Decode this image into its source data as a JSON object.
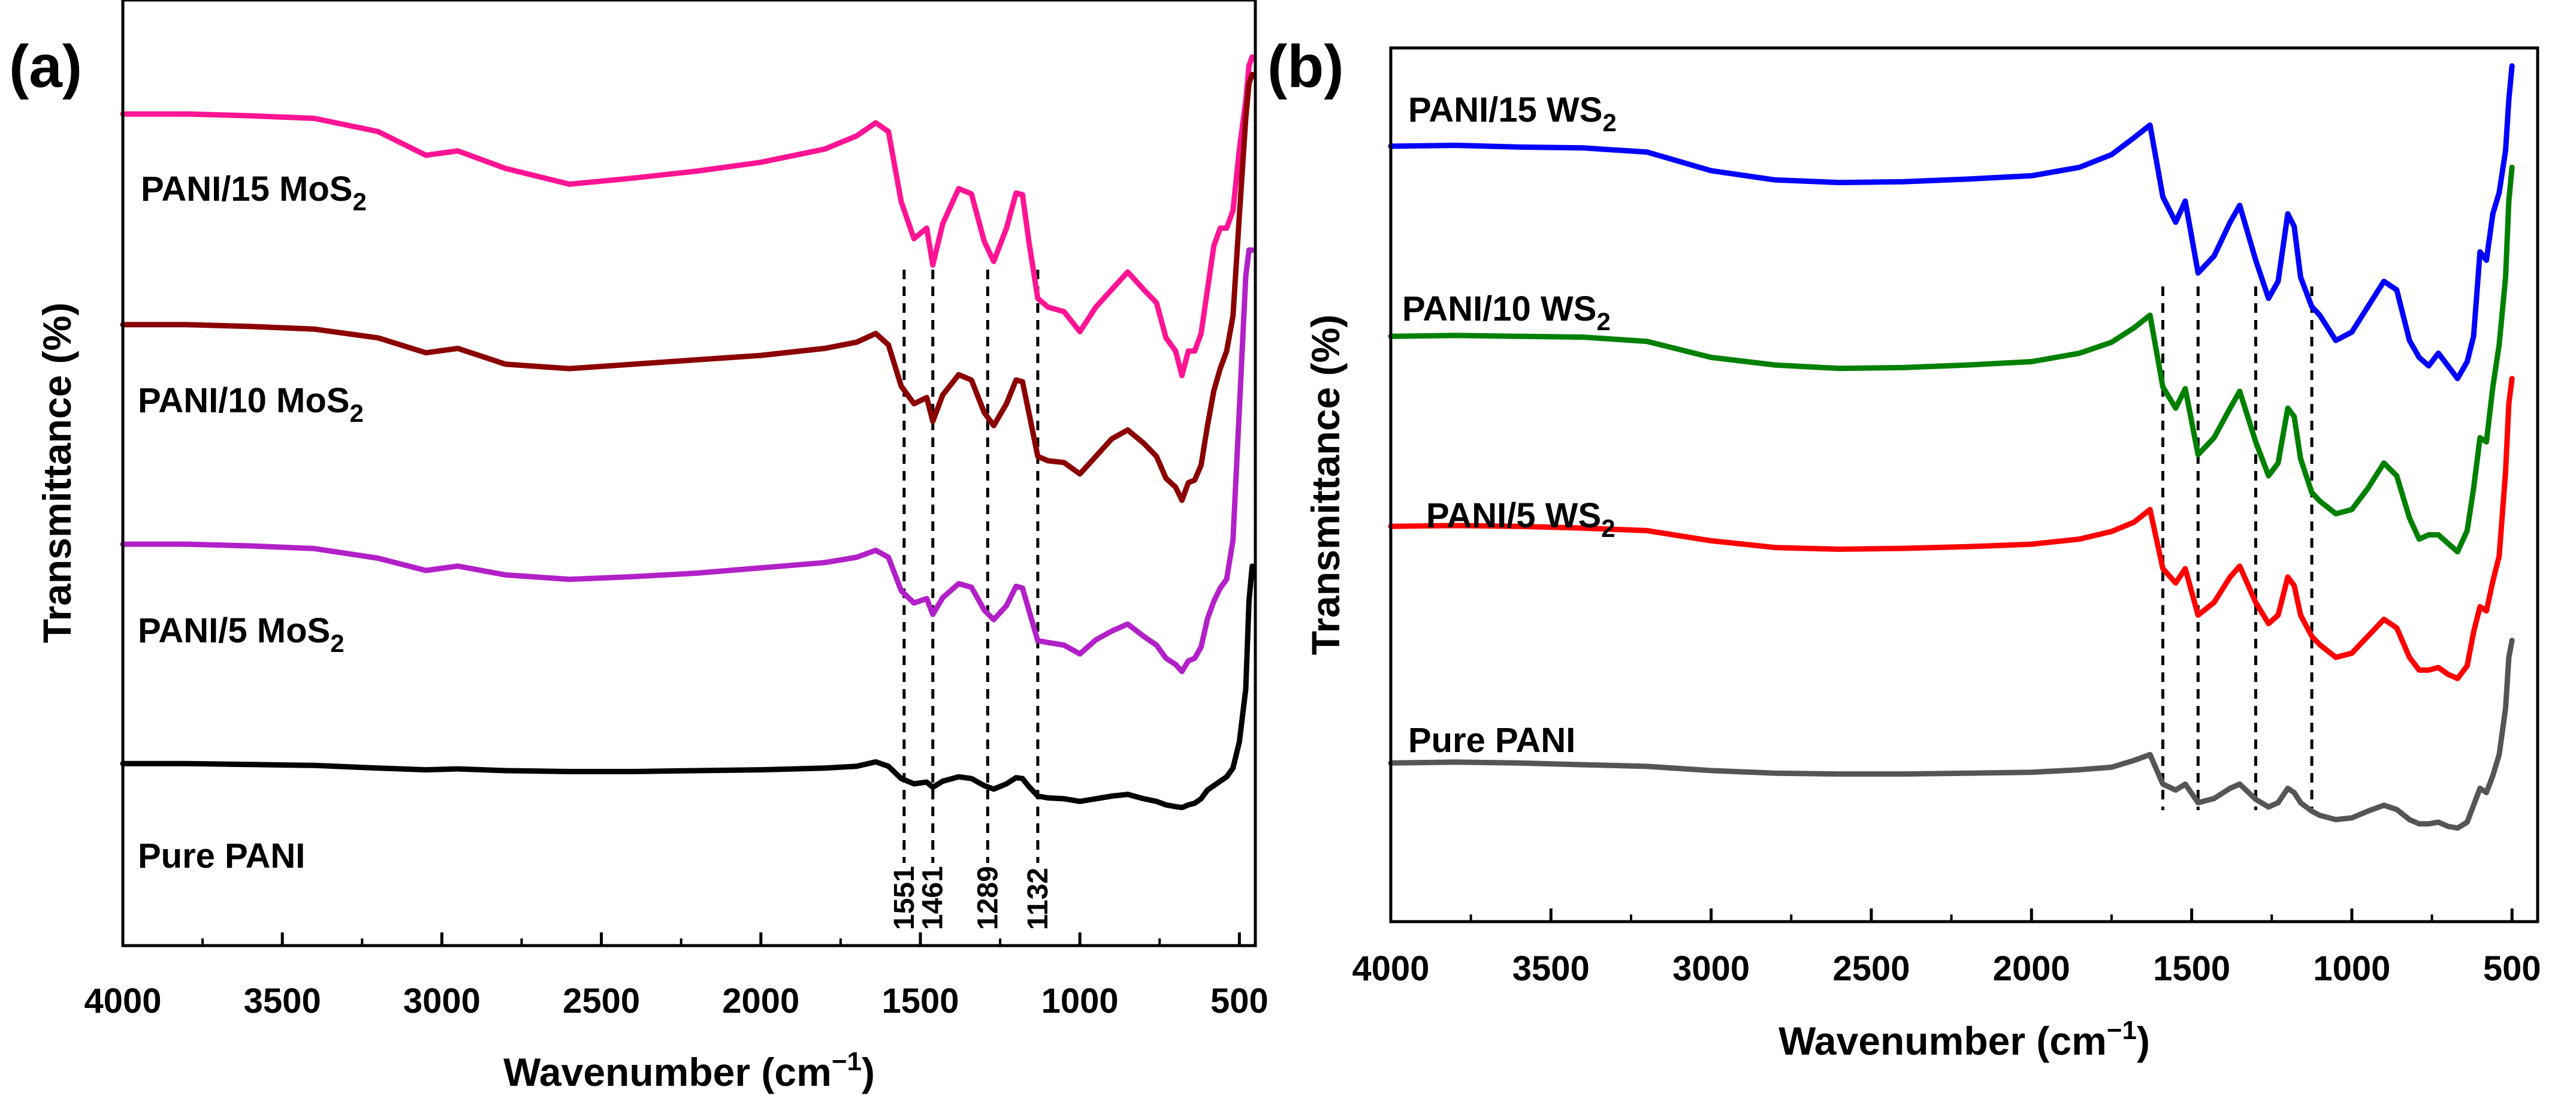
{
  "chart_data": [
    {
      "type": "line",
      "panel_label": "(a)",
      "xlabel": "Wavenumber (cm⁻¹)",
      "xlabel_base": "Wavenumber (cm",
      "xlabel_sup": "−1",
      "xlabel_end": ")",
      "ylabel": "Transmittance (%)",
      "xlim": [
        4000,
        450
      ],
      "ylim": [
        0,
        100
      ],
      "y_ticks_shown": false,
      "x_ticks": [
        4000,
        3500,
        3000,
        2500,
        2000,
        1500,
        1000,
        500
      ],
      "x_tick_labels": [
        "4000",
        "3500",
        "3000",
        "2500",
        "2000",
        "1500",
        "1000",
        "500"
      ],
      "peak_markers": [
        1551,
        1461,
        1289,
        1132
      ],
      "peak_labels": [
        "1551",
        "1461",
        "1289",
        "1132"
      ],
      "series": [
        {
          "name": "PANI/15 MoS2",
          "label_base": "PANI/15 MoS",
          "label_sub": "2",
          "color": "#ff1493",
          "x": [
            4000,
            3800,
            3600,
            3400,
            3200,
            3050,
            2950,
            2800,
            2600,
            2400,
            2200,
            2000,
            1800,
            1700,
            1640,
            1600,
            1560,
            1520,
            1480,
            1461,
            1430,
            1380,
            1340,
            1300,
            1270,
            1230,
            1200,
            1180,
            1160,
            1132,
            1100,
            1050,
            1000,
            950,
            900,
            850,
            800,
            760,
            730,
            700,
            680,
            660,
            640,
            620,
            600,
            580,
            560,
            540,
            520,
            500,
            480,
            470,
            460
          ],
          "y": [
            93.5,
            93.5,
            93.3,
            93.0,
            91.5,
            88.8,
            89.3,
            87.3,
            85.5,
            86.2,
            87.0,
            88.0,
            89.5,
            91.0,
            92.5,
            91.5,
            83.5,
            79.3,
            80.5,
            76.3,
            81.0,
            85.0,
            84.4,
            79.0,
            76.7,
            80.5,
            84.5,
            84.3,
            79.0,
            72.5,
            71.5,
            71.0,
            68.7,
            71.5,
            73.5,
            75.5,
            73.5,
            72.0,
            68.0,
            66.5,
            63.7,
            66.5,
            66.5,
            68.5,
            73.5,
            78.5,
            80.5,
            80.5,
            82.5,
            89.5,
            95.0,
            99.0,
            100
          ]
        },
        {
          "name": "PANI/10 MoS2",
          "label_base": "PANI/10 MoS",
          "label_sub": "2",
          "color": "#8b0000",
          "x": [
            4000,
            3800,
            3600,
            3400,
            3200,
            3050,
            2950,
            2800,
            2600,
            2400,
            2200,
            2000,
            1800,
            1700,
            1640,
            1600,
            1560,
            1520,
            1480,
            1461,
            1430,
            1380,
            1340,
            1300,
            1270,
            1230,
            1200,
            1180,
            1160,
            1132,
            1100,
            1050,
            1000,
            950,
            900,
            850,
            800,
            760,
            730,
            700,
            680,
            660,
            640,
            620,
            600,
            580,
            560,
            540,
            520,
            500,
            480,
            470,
            460
          ],
          "y": [
            69.5,
            69.5,
            69.3,
            69.0,
            68.0,
            66.3,
            66.8,
            65.0,
            64.5,
            65.0,
            65.5,
            66.0,
            66.8,
            67.5,
            68.5,
            67.2,
            62.5,
            60.5,
            61.2,
            58.5,
            61.5,
            63.8,
            63.2,
            59.5,
            58.0,
            60.5,
            63.2,
            63.0,
            59.5,
            54.5,
            54.0,
            53.8,
            52.5,
            54.5,
            56.5,
            57.5,
            56.0,
            54.5,
            52.0,
            51.0,
            49.5,
            51.5,
            51.8,
            53.5,
            58.0,
            62.0,
            64.5,
            66.5,
            70.5,
            82.0,
            93.0,
            97.0,
            98.0
          ]
        },
        {
          "name": "PANI/5 MoS2",
          "label_base": "PANI/5 MoS",
          "label_sub": "2",
          "color": "#b220c8",
          "x": [
            4000,
            3800,
            3600,
            3400,
            3200,
            3050,
            2950,
            2800,
            2600,
            2400,
            2200,
            2000,
            1800,
            1700,
            1640,
            1600,
            1560,
            1520,
            1480,
            1461,
            1430,
            1380,
            1340,
            1300,
            1270,
            1230,
            1200,
            1180,
            1160,
            1132,
            1100,
            1050,
            1000,
            950,
            900,
            850,
            800,
            760,
            730,
            700,
            680,
            660,
            640,
            620,
            600,
            580,
            560,
            540,
            520,
            500,
            480,
            470,
            460
          ],
          "y": [
            44.5,
            44.5,
            44.3,
            44.0,
            42.9,
            41.5,
            42.0,
            41.0,
            40.5,
            40.8,
            41.2,
            41.8,
            42.4,
            43.0,
            43.8,
            43.0,
            39.2,
            37.8,
            38.3,
            36.5,
            38.4,
            40.0,
            39.6,
            37.0,
            35.9,
            37.5,
            39.7,
            39.5,
            37.0,
            33.5,
            33.3,
            33.0,
            32.0,
            33.6,
            34.6,
            35.4,
            34.0,
            33.0,
            31.5,
            30.8,
            30.0,
            31.2,
            31.5,
            32.8,
            36.0,
            38.0,
            39.5,
            40.5,
            45.0,
            60.0,
            75.0,
            78.0,
            78.0
          ]
        },
        {
          "name": "Pure PANI",
          "label_base": "Pure PANI",
          "label_sub": "",
          "color": "#000000",
          "x": [
            4000,
            3800,
            3600,
            3400,
            3200,
            3050,
            2950,
            2800,
            2600,
            2400,
            2200,
            2000,
            1800,
            1700,
            1640,
            1600,
            1560,
            1520,
            1480,
            1461,
            1430,
            1380,
            1340,
            1300,
            1270,
            1230,
            1200,
            1180,
            1160,
            1132,
            1100,
            1050,
            1000,
            950,
            900,
            850,
            800,
            760,
            730,
            700,
            680,
            660,
            640,
            620,
            600,
            580,
            560,
            540,
            520,
            500,
            480,
            470,
            460
          ],
          "y": [
            19.5,
            19.5,
            19.4,
            19.3,
            19.0,
            18.8,
            18.9,
            18.7,
            18.6,
            18.6,
            18.7,
            18.8,
            19.0,
            19.2,
            19.7,
            19.2,
            17.8,
            17.2,
            17.4,
            16.8,
            17.5,
            18.0,
            17.8,
            17.0,
            16.6,
            17.2,
            17.9,
            17.8,
            16.9,
            15.8,
            15.6,
            15.5,
            15.2,
            15.5,
            15.8,
            16.0,
            15.5,
            15.2,
            14.8,
            14.6,
            14.5,
            14.8,
            15.0,
            15.5,
            16.5,
            17.0,
            17.5,
            18.0,
            19.0,
            22.0,
            28.0,
            38.0,
            42.0
          ]
        }
      ]
    },
    {
      "type": "line",
      "panel_label": "(b)",
      "xlabel": "Wavenumber (cm⁻¹)",
      "xlabel_base": "Wavenumber (cm",
      "xlabel_sup": "−1",
      "xlabel_end": ")",
      "ylabel": "Transmittance (%)",
      "xlim": [
        4000,
        420
      ],
      "ylim": [
        0,
        100
      ],
      "y_ticks_shown": false,
      "x_ticks": [
        4000,
        3500,
        3000,
        2500,
        2000,
        1500,
        1000,
        500
      ],
      "x_tick_labels": [
        "4000",
        "3500",
        "3000",
        "2500",
        "2000",
        "1500",
        "1000",
        "500"
      ],
      "peak_markers": [
        1590,
        1480,
        1300,
        1125
      ],
      "series": [
        {
          "name": "PANI/15 WS2",
          "label_base": "PANI/15 WS",
          "label_sub": "2",
          "color": "#0000ff",
          "x": [
            4000,
            3800,
            3600,
            3400,
            3200,
            3000,
            2800,
            2600,
            2400,
            2200,
            2000,
            1850,
            1750,
            1680,
            1630,
            1590,
            1550,
            1520,
            1480,
            1430,
            1380,
            1350,
            1300,
            1260,
            1230,
            1200,
            1180,
            1160,
            1125,
            1100,
            1050,
            1000,
            950,
            900,
            860,
            820,
            790,
            760,
            730,
            700,
            670,
            640,
            620,
            600,
            580,
            560,
            540,
            520,
            510,
            500
          ],
          "y": [
            90.5,
            90.6,
            90.4,
            90.3,
            89.8,
            87.6,
            86.5,
            86.2,
            86.3,
            86.6,
            87.0,
            88.0,
            89.5,
            91.5,
            93.0,
            84.5,
            81.5,
            84.0,
            75.5,
            77.5,
            81.5,
            83.5,
            77.0,
            72.5,
            74.5,
            82.5,
            81.0,
            75.0,
            71.5,
            70.5,
            67.5,
            68.5,
            71.5,
            74.5,
            73.5,
            67.5,
            65.5,
            64.5,
            66.0,
            64.5,
            63.0,
            65.0,
            68.0,
            78.0,
            77.0,
            82.5,
            85.0,
            90.0,
            96.0,
            100.0
          ]
        },
        {
          "name": "PANI/10 WS2",
          "label_base": "PANI/10 WS",
          "label_sub": "2",
          "color": "#008000",
          "x": [
            4000,
            3800,
            3600,
            3400,
            3200,
            3000,
            2800,
            2600,
            2400,
            2200,
            2000,
            1850,
            1750,
            1680,
            1630,
            1590,
            1550,
            1520,
            1480,
            1430,
            1380,
            1350,
            1300,
            1260,
            1230,
            1200,
            1180,
            1160,
            1125,
            1100,
            1050,
            1000,
            950,
            900,
            860,
            820,
            790,
            760,
            730,
            700,
            670,
            640,
            620,
            600,
            580,
            560,
            540,
            520,
            510,
            500
          ],
          "y": [
            68.0,
            68.1,
            68.0,
            67.9,
            67.4,
            65.5,
            64.6,
            64.2,
            64.3,
            64.6,
            65.0,
            66.0,
            67.3,
            69.0,
            70.5,
            62.0,
            59.5,
            61.8,
            54.0,
            56.0,
            59.5,
            61.5,
            55.5,
            51.5,
            53.0,
            59.5,
            58.5,
            53.5,
            49.5,
            48.5,
            47.0,
            47.5,
            50.0,
            53.0,
            51.5,
            46.5,
            44.0,
            44.5,
            44.5,
            43.5,
            42.5,
            45.0,
            50.0,
            56.0,
            55.5,
            62.0,
            67.0,
            75.0,
            84.0,
            88.0
          ]
        },
        {
          "name": "PANI/5 WS2",
          "label_base": "PANI/5 WS",
          "label_sub": "2",
          "color": "#ff0000",
          "x": [
            4000,
            3800,
            3600,
            3400,
            3200,
            3000,
            2800,
            2600,
            2400,
            2200,
            2000,
            1850,
            1750,
            1680,
            1630,
            1590,
            1550,
            1520,
            1480,
            1430,
            1380,
            1350,
            1300,
            1260,
            1230,
            1200,
            1180,
            1160,
            1125,
            1100,
            1050,
            1000,
            950,
            900,
            860,
            820,
            790,
            760,
            730,
            700,
            670,
            640,
            620,
            600,
            580,
            560,
            540,
            520,
            510,
            500
          ],
          "y": [
            45.5,
            45.6,
            45.5,
            45.3,
            45.0,
            43.8,
            43.0,
            42.8,
            42.9,
            43.1,
            43.4,
            44.0,
            44.9,
            46.0,
            47.5,
            40.5,
            38.8,
            40.5,
            35.0,
            36.5,
            39.5,
            40.8,
            36.5,
            34.0,
            35.0,
            39.5,
            38.5,
            35.0,
            32.5,
            31.5,
            30.0,
            30.5,
            32.5,
            34.5,
            33.5,
            30.0,
            28.5,
            28.5,
            28.8,
            28.0,
            27.5,
            29.0,
            33.0,
            36.0,
            35.5,
            39.0,
            42.0,
            52.0,
            60.0,
            63.0
          ]
        },
        {
          "name": "Pure PANI",
          "label_base": "Pure PANI",
          "label_sub": "",
          "color": "#555555",
          "x": [
            4000,
            3800,
            3600,
            3400,
            3200,
            3000,
            2800,
            2600,
            2400,
            2200,
            2000,
            1850,
            1750,
            1680,
            1630,
            1590,
            1550,
            1520,
            1480,
            1430,
            1380,
            1350,
            1300,
            1260,
            1230,
            1200,
            1180,
            1160,
            1125,
            1100,
            1050,
            1000,
            950,
            900,
            860,
            820,
            790,
            760,
            730,
            700,
            670,
            640,
            620,
            600,
            580,
            560,
            540,
            520,
            510,
            500
          ],
          "y": [
            17.5,
            17.6,
            17.5,
            17.3,
            17.1,
            16.6,
            16.3,
            16.2,
            16.2,
            16.3,
            16.4,
            16.7,
            17.0,
            17.8,
            18.5,
            15.0,
            14.3,
            15.0,
            12.8,
            13.3,
            14.5,
            15.0,
            13.2,
            12.3,
            12.8,
            14.5,
            14.0,
            12.8,
            11.8,
            11.3,
            10.8,
            11.0,
            11.8,
            12.5,
            12.0,
            10.8,
            10.3,
            10.3,
            10.5,
            10.0,
            9.8,
            10.5,
            12.5,
            14.5,
            14.0,
            16.0,
            18.5,
            24.0,
            30.0,
            32.0
          ]
        }
      ]
    }
  ]
}
